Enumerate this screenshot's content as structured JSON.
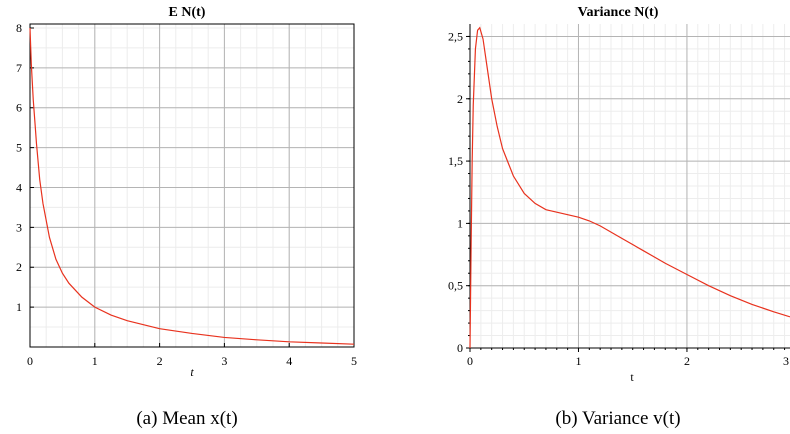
{
  "chart_data": [
    {
      "type": "line",
      "title": "E N(t)",
      "xlabel": "t",
      "xlabel_italic": true,
      "ylabel": "",
      "xlim": [
        0,
        5
      ],
      "ylim": [
        0,
        8.1
      ],
      "xticks": [
        "0",
        "1",
        "2",
        "3",
        "4",
        "5"
      ],
      "yticks": [
        "1",
        "2",
        "3",
        "4",
        "5",
        "6",
        "7",
        "8"
      ],
      "grid": true,
      "color": "#e8321e",
      "series": [
        {
          "x": [
            0.0,
            0.02,
            0.05,
            0.08,
            0.1,
            0.15,
            0.2,
            0.3,
            0.4,
            0.5,
            0.6,
            0.8,
            1.0,
            1.25,
            1.5,
            2.0,
            2.5,
            3.0,
            3.5,
            4.0,
            4.5,
            5.0
          ],
          "values": [
            8.0,
            7.1,
            6.2,
            5.55,
            5.1,
            4.2,
            3.6,
            2.75,
            2.2,
            1.85,
            1.6,
            1.25,
            1.0,
            0.8,
            0.66,
            0.46,
            0.34,
            0.24,
            0.18,
            0.13,
            0.1,
            0.07
          ]
        }
      ],
      "caption": "(a) Mean x(t)"
    },
    {
      "type": "line",
      "title": "Variance N(t)",
      "xlabel": "t",
      "xlabel_italic": false,
      "ylabel": "",
      "xlim": [
        0,
        2.95
      ],
      "ylim": [
        0,
        2.6
      ],
      "xticks": [
        "0",
        "1",
        "2",
        "3"
      ],
      "yticks": [
        "0",
        "0,5",
        "1",
        "1,5",
        "2",
        "2,5"
      ],
      "grid": true,
      "color": "#e8321e",
      "series": [
        {
          "x": [
            0.0,
            0.01,
            0.02,
            0.03,
            0.05,
            0.07,
            0.09,
            0.12,
            0.15,
            0.2,
            0.25,
            0.3,
            0.4,
            0.5,
            0.6,
            0.7,
            0.8,
            0.9,
            1.0,
            1.1,
            1.2,
            1.4,
            1.6,
            1.8,
            2.0,
            2.2,
            2.4,
            2.6,
            2.8,
            2.95
          ],
          "values": [
            0.0,
            0.8,
            1.5,
            1.95,
            2.4,
            2.55,
            2.57,
            2.48,
            2.3,
            2.0,
            1.78,
            1.6,
            1.38,
            1.24,
            1.16,
            1.11,
            1.09,
            1.07,
            1.05,
            1.02,
            0.98,
            0.88,
            0.78,
            0.68,
            0.59,
            0.5,
            0.42,
            0.35,
            0.29,
            0.25
          ]
        }
      ],
      "caption": "(b) Variance v(t)"
    }
  ]
}
